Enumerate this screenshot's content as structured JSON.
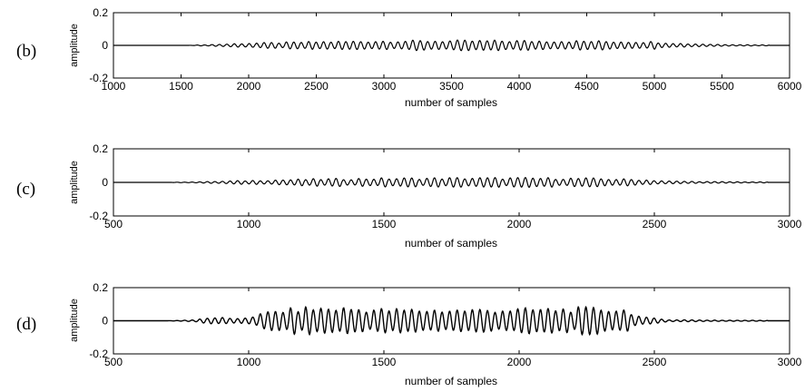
{
  "chart_data": [
    {
      "type": "line",
      "panel_label": "(b)",
      "xlabel": "number of samples",
      "ylabel": "amplitude",
      "xlim": [
        1000,
        6000
      ],
      "ylim": [
        -0.2,
        0.2
      ],
      "xticks": [
        1000,
        1500,
        2000,
        2500,
        3000,
        3500,
        4000,
        4500,
        5000,
        5500,
        6000
      ],
      "yticks": [
        0.2,
        0,
        -0.2
      ],
      "xtick_labels": [
        "1000",
        "1500",
        "2000",
        "2500",
        "3000",
        "3500",
        "4000",
        "4500",
        "5000",
        "5500",
        "6000"
      ],
      "ytick_labels": [
        "0.2",
        "0",
        "-0.2"
      ],
      "grid": false,
      "series": [
        {
          "signal_start": 1550,
          "signal_end": 5850,
          "period_samples": 55,
          "envelope": [
            [
              1550,
              0.0
            ],
            [
              1750,
              0.005
            ],
            [
              2000,
              0.012
            ],
            [
              2500,
              0.02
            ],
            [
              3000,
              0.025
            ],
            [
              3500,
              0.026
            ],
            [
              4000,
              0.026
            ],
            [
              4500,
              0.024
            ],
            [
              5000,
              0.02
            ],
            [
              5200,
              0.01
            ],
            [
              5500,
              0.005
            ],
            [
              5850,
              0.002
            ]
          ]
        }
      ]
    },
    {
      "type": "line",
      "panel_label": "(c)",
      "xlabel": "number of samples",
      "ylabel": "amplitude",
      "xlim": [
        500,
        3000
      ],
      "ylim": [
        -0.2,
        0.2
      ],
      "xticks": [
        500,
        1000,
        1500,
        2000,
        2500,
        3000
      ],
      "yticks": [
        0.2,
        0,
        -0.2
      ],
      "xtick_labels": [
        "500",
        "1000",
        "1500",
        "2000",
        "2500",
        "3000"
      ],
      "ytick_labels": [
        "0.2",
        "0",
        "-0.2"
      ],
      "grid": false,
      "series": [
        {
          "signal_start": 700,
          "signal_end": 2920,
          "period_samples": 28,
          "envelope": [
            [
              700,
              0.0
            ],
            [
              850,
              0.004
            ],
            [
              1000,
              0.01
            ],
            [
              1250,
              0.018
            ],
            [
              1500,
              0.022
            ],
            [
              1750,
              0.024
            ],
            [
              2000,
              0.024
            ],
            [
              2250,
              0.022
            ],
            [
              2450,
              0.015
            ],
            [
              2550,
              0.007
            ],
            [
              2700,
              0.004
            ],
            [
              2920,
              0.002
            ]
          ]
        }
      ]
    },
    {
      "type": "line",
      "panel_label": "(d)",
      "xlabel": "number of samples",
      "ylabel": "amplitude",
      "xlim": [
        500,
        3000
      ],
      "ylim": [
        -0.2,
        0.2
      ],
      "xticks": [
        500,
        1000,
        1500,
        2000,
        2500,
        3000
      ],
      "yticks": [
        0.2,
        0,
        -0.2
      ],
      "xtick_labels": [
        "500",
        "1000",
        "1500",
        "2000",
        "2500",
        "3000"
      ],
      "ytick_labels": [
        "0.2",
        "0",
        "-0.2"
      ],
      "grid": false,
      "series": [
        {
          "signal_start": 700,
          "signal_end": 2920,
          "period_samples": 28,
          "envelope": [
            [
              700,
              0.0
            ],
            [
              800,
              0.005
            ],
            [
              880,
              0.02
            ],
            [
              940,
              0.01
            ],
            [
              1000,
              0.02
            ],
            [
              1080,
              0.05
            ],
            [
              1200,
              0.07
            ],
            [
              1350,
              0.07
            ],
            [
              1500,
              0.062
            ],
            [
              1700,
              0.06
            ],
            [
              1900,
              0.062
            ],
            [
              2100,
              0.065
            ],
            [
              2300,
              0.068
            ],
            [
              2400,
              0.06
            ],
            [
              2450,
              0.02
            ],
            [
              2550,
              0.006
            ],
            [
              2750,
              0.003
            ],
            [
              2920,
              0.002
            ]
          ]
        }
      ]
    }
  ]
}
